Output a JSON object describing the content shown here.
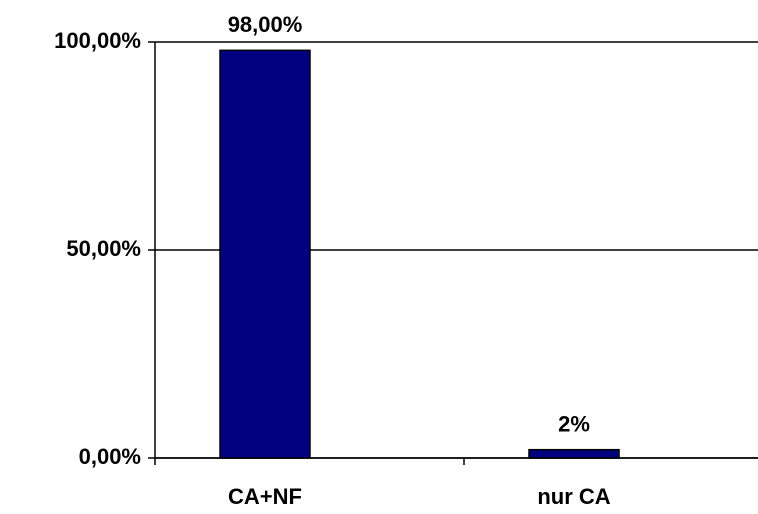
{
  "chart_data": {
    "type": "bar",
    "categories": [
      "CA+NF",
      "nur CA"
    ],
    "values": [
      98,
      2
    ],
    "value_labels": [
      "98,00%",
      "2%"
    ],
    "color": "#000080",
    "ylim": [
      0,
      100
    ],
    "yticks": [
      {
        "value": 0,
        "label": "0,00%"
      },
      {
        "value": 50,
        "label": "50,00%"
      },
      {
        "value": 100,
        "label": "100,00%"
      }
    ],
    "grid": true
  }
}
